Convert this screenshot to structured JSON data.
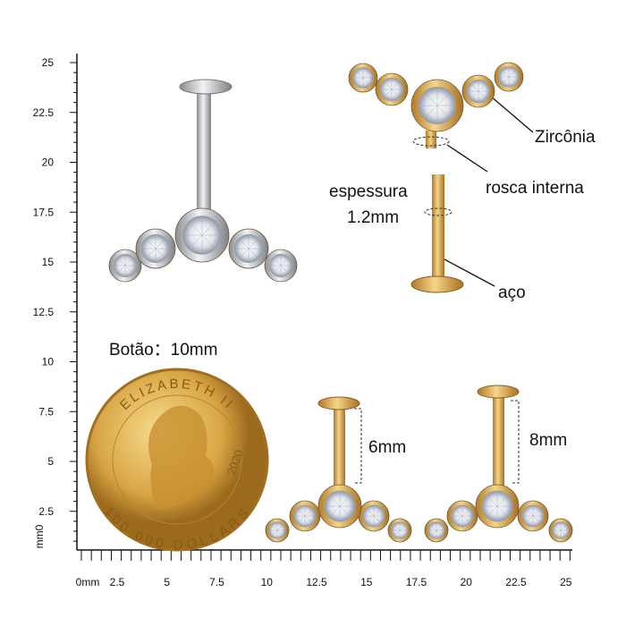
{
  "ruler": {
    "y_labels": [
      "25",
      "22.5",
      "20",
      "17.5",
      "15",
      "12.5",
      "10",
      "7.5",
      "5",
      "2.5"
    ],
    "y_unit": "mm0",
    "x_labels": [
      "0mm",
      "2.5",
      "5",
      "7.5",
      "10",
      "12.5",
      "15",
      "17.5",
      "20",
      "22.5",
      "25"
    ]
  },
  "annotations": {
    "gem": "Zircônia",
    "thread": "rosca interna",
    "thickness": "espessura",
    "thickness_value": "1.2mm",
    "material": "aço",
    "button": "Botão：10mm",
    "length_a": "6mm",
    "length_b": "8mm"
  },
  "coin": {
    "top": "ELIZABETH II",
    "year": "2020",
    "bottom": "100 000 DOLLARS"
  }
}
